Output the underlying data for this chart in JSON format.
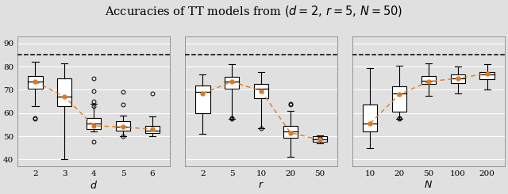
{
  "title": "Accuracies of TT models from $(d = 2,\\, r = 5,\\, N = 50)$",
  "reference_line": 85.0,
  "plots": [
    {
      "xlabel": "$d$",
      "xtick_labels": [
        "2",
        "3",
        "4",
        "5",
        "6"
      ],
      "ylim": [
        37,
        93
      ],
      "yticks": [
        40,
        50,
        60,
        70,
        80,
        90
      ],
      "boxes": [
        {
          "q1": 70.5,
          "median": 73.5,
          "q3": 76.0,
          "whisker_lo": 63.0,
          "whisker_hi": 82.0,
          "mean": 73.5,
          "fliers": [
            58.0,
            57.5
          ]
        },
        {
          "q1": 63.0,
          "median": 67.0,
          "q3": 75.0,
          "whisker_lo": 40.0,
          "whisker_hi": 81.5,
          "mean": 67.0,
          "fliers": []
        },
        {
          "q1": 53.0,
          "median": 55.5,
          "q3": 58.0,
          "whisker_lo": 52.0,
          "whisker_hi": 64.0,
          "mean": 54.5,
          "fliers": [
            75.0,
            69.5,
            65.0,
            63.0,
            47.5
          ]
        },
        {
          "q1": 52.5,
          "median": 54.0,
          "q3": 56.5,
          "whisker_lo": 50.0,
          "whisker_hi": 59.0,
          "mean": 54.0,
          "fliers": [
            69.0,
            63.5,
            50.0
          ]
        },
        {
          "q1": 51.5,
          "median": 52.5,
          "q3": 54.5,
          "whisker_lo": 50.0,
          "whisker_hi": 58.5,
          "mean": 53.0,
          "fliers": [
            68.5
          ]
        }
      ],
      "means": [
        73.5,
        67.0,
        54.5,
        54.0,
        53.0
      ]
    },
    {
      "xlabel": "$r$",
      "xtick_labels": [
        "2",
        "5",
        "10",
        "20",
        "50"
      ],
      "ylim": [
        37,
        93
      ],
      "yticks": [
        40,
        50,
        60,
        70,
        80,
        90
      ],
      "boxes": [
        {
          "q1": 60.0,
          "median": 69.0,
          "q3": 72.0,
          "whisker_lo": 51.0,
          "whisker_hi": 76.5,
          "mean": 68.5,
          "fliers": []
        },
        {
          "q1": 70.5,
          "median": 73.5,
          "q3": 75.5,
          "whisker_lo": 57.5,
          "whisker_hi": 81.0,
          "mean": 73.5,
          "fliers": [
            58.0,
            57.5
          ]
        },
        {
          "q1": 66.5,
          "median": 70.5,
          "q3": 72.5,
          "whisker_lo": 53.5,
          "whisker_hi": 77.5,
          "mean": 69.5,
          "fliers": [
            53.5
          ]
        },
        {
          "q1": 49.5,
          "median": 52.0,
          "q3": 54.5,
          "whisker_lo": 41.0,
          "whisker_hi": 61.0,
          "mean": 51.5,
          "fliers": [
            63.5,
            64.0
          ]
        },
        {
          "q1": 47.5,
          "median": 48.5,
          "q3": 50.0,
          "whisker_lo": 47.0,
          "whisker_hi": 50.5,
          "mean": 48.5,
          "fliers": [
            49.5,
            49.0
          ]
        }
      ],
      "means": [
        68.5,
        73.5,
        69.5,
        51.5,
        48.5
      ]
    },
    {
      "xlabel": "$N$",
      "xtick_labels": [
        "10",
        "20",
        "50",
        "100",
        "200"
      ],
      "ylim": [
        37,
        93
      ],
      "yticks": [
        40,
        50,
        60,
        70,
        80,
        90
      ],
      "boxes": [
        {
          "q1": 52.0,
          "median": 55.5,
          "q3": 63.5,
          "whisker_lo": 45.0,
          "whisker_hi": 79.5,
          "mean": 55.5,
          "fliers": []
        },
        {
          "q1": 60.5,
          "median": 68.5,
          "q3": 71.5,
          "whisker_lo": 57.5,
          "whisker_hi": 80.5,
          "mean": 68.0,
          "fliers": [
            58.0,
            57.5
          ]
        },
        {
          "q1": 72.5,
          "median": 74.0,
          "q3": 76.0,
          "whisker_lo": 67.5,
          "whisker_hi": 81.5,
          "mean": 73.5,
          "fliers": []
        },
        {
          "q1": 73.0,
          "median": 75.0,
          "q3": 76.5,
          "whisker_lo": 68.5,
          "whisker_hi": 80.0,
          "mean": 75.0,
          "fliers": []
        },
        {
          "q1": 74.5,
          "median": 76.5,
          "q3": 77.5,
          "whisker_lo": 70.0,
          "whisker_hi": 81.0,
          "mean": 77.0,
          "fliers": []
        }
      ],
      "means": [
        55.5,
        68.0,
        73.5,
        75.0,
        77.0
      ]
    }
  ],
  "box_color": "#ffffff",
  "median_color": "#000000",
  "mean_color": "#e07820",
  "whisker_color": "#000000",
  "flier_color": "#000000",
  "ref_line_color": "#000000",
  "background_color": "#e0e0e0",
  "grid_color": "#ffffff",
  "title_fontsize": 10.5
}
